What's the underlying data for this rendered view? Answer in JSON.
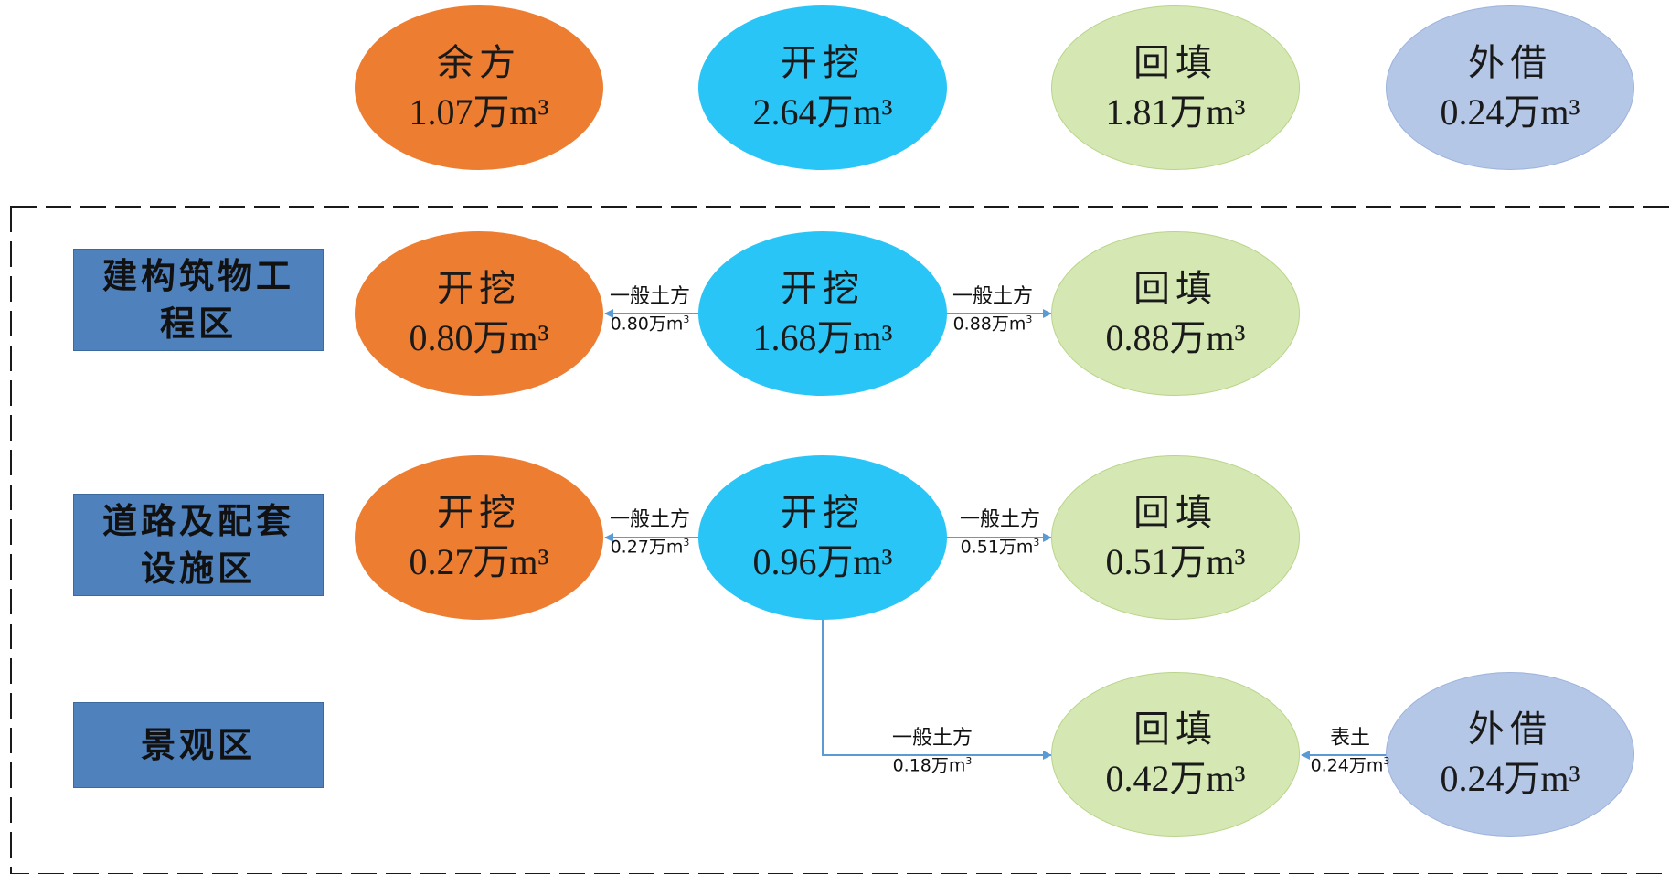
{
  "summary": [
    {
      "label": "余方",
      "value": "1.07万m³",
      "color": "#ED7D31"
    },
    {
      "label": "开挖",
      "value": "2.64万m³",
      "color": "#29C5F6"
    },
    {
      "label": "回填",
      "value": "1.81万m³",
      "color": "#D5E8B3"
    },
    {
      "label": "外借",
      "value": "0.24万m³",
      "color": "#B4C7E7"
    }
  ],
  "zones": [
    {
      "name": "建构筑物工程区",
      "surplus": {
        "label": "开挖",
        "value": "0.80万m³"
      },
      "excavation": {
        "label": "开挖",
        "value": "1.68万m³"
      },
      "fill": {
        "label": "回填",
        "value": "0.88万m³"
      },
      "flow_left": {
        "type": "一般土方",
        "amount": "0.80万m",
        "unit_sup": "3"
      },
      "flow_right": {
        "type": "一般土方",
        "amount": "0.88万m",
        "unit_sup": "3"
      }
    },
    {
      "name": "道路及配套设施区",
      "surplus": {
        "label": "开挖",
        "value": "0.27万m³"
      },
      "excavation": {
        "label": "开挖",
        "value": "0.96万m³"
      },
      "fill": {
        "label": "回填",
        "value": "0.51万m³"
      },
      "flow_left": {
        "type": "一般土方",
        "amount": "0.27万m",
        "unit_sup": "3"
      },
      "flow_right": {
        "type": "一般土方",
        "amount": "0.51万m",
        "unit_sup": "3"
      }
    },
    {
      "name": "景观区",
      "fill": {
        "label": "回填",
        "value": "0.42万m³"
      },
      "borrow": {
        "label": "外借",
        "value": "0.24万m³"
      },
      "flow_down": {
        "type": "一般土方",
        "amount": "0.18万m",
        "unit_sup": "3"
      },
      "flow_borrow": {
        "type": "表土",
        "amount": "0.24万m",
        "unit_sup": "3"
      }
    }
  ],
  "colors": {
    "arrow": "#5B9BD5",
    "border_dash": "#1a1a1a"
  }
}
